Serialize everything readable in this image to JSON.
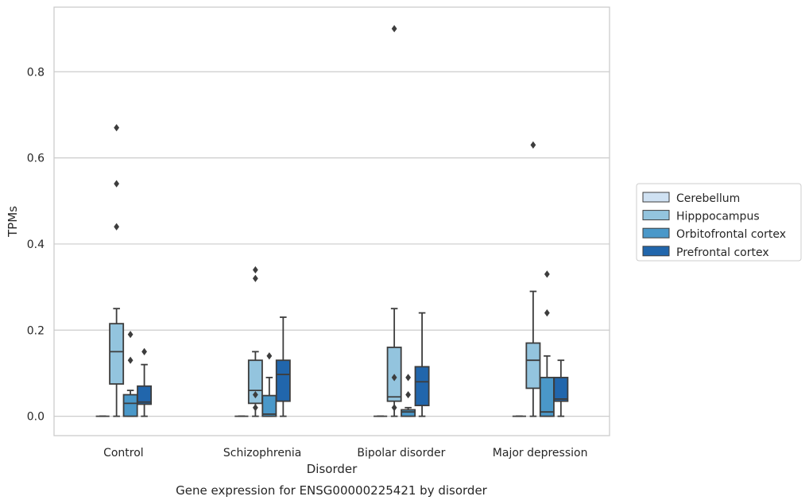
{
  "chart_data": {
    "type": "box",
    "title": "Gene expression for ENSG00000225421 by disorder",
    "xlabel": "Disorder",
    "ylabel": "TPMs",
    "ylim": [
      -0.045,
      0.95
    ],
    "yticks": [
      "0.0",
      "0.2",
      "0.4",
      "0.6",
      "0.8"
    ],
    "grid": true,
    "legend_position": "right",
    "categories": [
      "Control",
      "Schizophrenia",
      "Bipolar disorder",
      "Major depression"
    ],
    "series": [
      {
        "name": "Cerebellum",
        "color": "#cfe1f2",
        "boxes": [
          {
            "q1": 0,
            "median": 0,
            "q3": 0,
            "whisker_low": 0,
            "whisker_high": 0,
            "outliers": []
          },
          {
            "q1": 0,
            "median": 0,
            "q3": 0,
            "whisker_low": 0,
            "whisker_high": 0,
            "outliers": []
          },
          {
            "q1": 0,
            "median": 0,
            "q3": 0,
            "whisker_low": 0,
            "whisker_high": 0,
            "outliers": []
          },
          {
            "q1": 0,
            "median": 0,
            "q3": 0,
            "whisker_low": 0,
            "whisker_high": 0,
            "outliers": []
          }
        ]
      },
      {
        "name": "Hipppocampus",
        "color": "#93c4de",
        "boxes": [
          {
            "q1": 0.075,
            "median": 0.15,
            "q3": 0.215,
            "whisker_low": 0,
            "whisker_high": 0.25,
            "outliers": [
              0.67,
              0.54,
              0.44
            ]
          },
          {
            "q1": 0.03,
            "median": 0.06,
            "q3": 0.13,
            "whisker_low": 0,
            "whisker_high": 0.15,
            "outliers": [
              0.34,
              0.32,
              0.05,
              0.02
            ]
          },
          {
            "q1": 0.035,
            "median": 0.045,
            "q3": 0.16,
            "whisker_low": 0,
            "whisker_high": 0.25,
            "outliers": [
              0.9,
              0.09,
              0.02
            ]
          },
          {
            "q1": 0.065,
            "median": 0.13,
            "q3": 0.17,
            "whisker_low": 0,
            "whisker_high": 0.29,
            "outliers": [
              0.63
            ]
          }
        ]
      },
      {
        "name": "Orbitofrontal cortex",
        "color": "#4a98c9",
        "boxes": [
          {
            "q1": 0,
            "median": 0.03,
            "q3": 0.05,
            "whisker_low": 0,
            "whisker_high": 0.06,
            "outliers": [
              0.19,
              0.13
            ]
          },
          {
            "q1": 0,
            "median": 0.005,
            "q3": 0.048,
            "whisker_low": 0,
            "whisker_high": 0.09,
            "outliers": [
              0.14
            ]
          },
          {
            "q1": 0,
            "median": 0.01,
            "q3": 0.015,
            "whisker_low": 0,
            "whisker_high": 0.02,
            "outliers": [
              0.09,
              0.05
            ]
          },
          {
            "q1": 0,
            "median": 0.01,
            "q3": 0.09,
            "whisker_low": 0,
            "whisker_high": 0.14,
            "outliers": [
              0.33,
              0.24
            ]
          }
        ]
      },
      {
        "name": "Prefrontal cortex",
        "color": "#2166ac",
        "boxes": [
          {
            "q1": 0.028,
            "median": 0.033,
            "q3": 0.07,
            "whisker_low": 0,
            "whisker_high": 0.12,
            "outliers": [
              0.15
            ]
          },
          {
            "q1": 0.035,
            "median": 0.097,
            "q3": 0.13,
            "whisker_low": 0,
            "whisker_high": 0.23,
            "outliers": []
          },
          {
            "q1": 0.025,
            "median": 0.08,
            "q3": 0.115,
            "whisker_low": 0,
            "whisker_high": 0.24,
            "outliers": []
          },
          {
            "q1": 0.035,
            "median": 0.04,
            "q3": 0.09,
            "whisker_low": 0,
            "whisker_high": 0.13,
            "outliers": []
          }
        ]
      }
    ]
  }
}
